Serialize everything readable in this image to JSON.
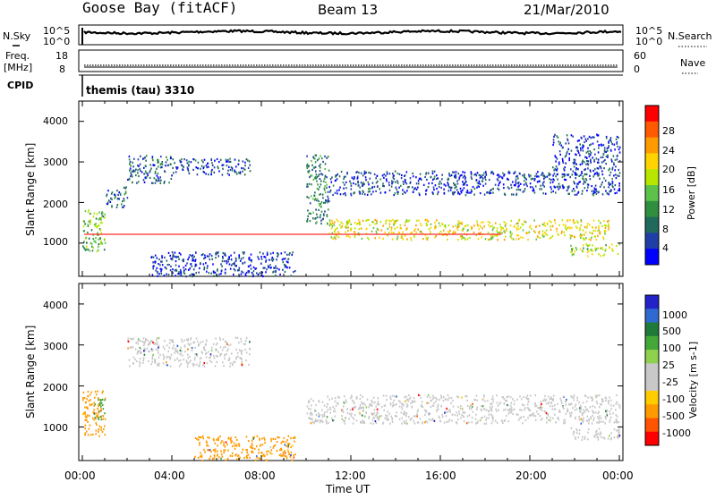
{
  "header": {
    "station": "Goose Bay (fitACF)",
    "beam": "Beam 13",
    "date": "21/Mar/2010"
  },
  "panels": {
    "nsky": {
      "left_label": "N.Sky",
      "left_ticks": [
        "10^5",
        "10^0"
      ],
      "right_label": "N.Search",
      "right_ticks": [
        "10^5",
        "10^0"
      ]
    },
    "freq": {
      "left_label_1": "Freq.",
      "left_label_2": "[MHz]",
      "left_ticks": [
        "18",
        "8"
      ],
      "right_label": "Nave",
      "right_ticks": [
        "60",
        "0"
      ]
    },
    "cpid": {
      "label": "CPID",
      "text": "themis (tau) 3310"
    }
  },
  "power_colorbar": {
    "label": "Power [dB]",
    "ticks": [
      "28",
      "24",
      "20",
      "16",
      "12",
      "8",
      "4"
    ],
    "colors": [
      "#ff0000",
      "#ff5a00",
      "#ff9a00",
      "#ffd400",
      "#b8e600",
      "#5cc24a",
      "#2f8f3f",
      "#1f6a5a",
      "#1f3fa6",
      "#0000ff"
    ]
  },
  "velocity_colorbar": {
    "label": "Velocity [m s-1]",
    "ticks": [
      "1000",
      "500",
      "100",
      "25",
      "-25",
      "-100",
      "-500",
      "-1000"
    ],
    "colors": [
      "#2222c8",
      "#2f6ad0",
      "#1f7a3a",
      "#44a838",
      "#8ed14f",
      "#c8c8c8",
      "#c8c8c8",
      "#ffcc00",
      "#ff9a00",
      "#ff5500",
      "#ff0000"
    ]
  },
  "axes": {
    "ylabel": "Slant Range [km]",
    "yticks": [
      "4000",
      "3000",
      "2000",
      "1000"
    ],
    "xlabel": "Time UT",
    "xticks": [
      "00:00",
      "04:00",
      "08:00",
      "12:00",
      "16:00",
      "20:00",
      "00:00"
    ]
  },
  "chart_data": {
    "type": "heatmap",
    "title": "Goose Bay (fitACF) Beam 13 21/Mar/2010",
    "xlabel": "Time UT",
    "ylabel": "Slant Range [km]",
    "xlim": [
      0,
      24
    ],
    "ylim": [
      180,
      4500
    ],
    "scatter_regions_power": [
      {
        "t_start": 0.0,
        "t_end": 1.0,
        "r_min": 800,
        "r_max": 1900,
        "power_db": 14
      },
      {
        "t_start": 1.0,
        "t_end": 2.0,
        "r_min": 1900,
        "r_max": 2400,
        "power_db": 8
      },
      {
        "t_start": 2.0,
        "t_end": 4.0,
        "r_min": 2500,
        "r_max": 3200,
        "power_db": 8
      },
      {
        "t_start": 4.0,
        "t_end": 7.5,
        "r_min": 2700,
        "r_max": 3100,
        "power_db": 6
      },
      {
        "t_start": 3.0,
        "t_end": 9.5,
        "r_min": 200,
        "r_max": 800,
        "power_db": 5
      },
      {
        "t_start": 10.0,
        "t_end": 11.0,
        "r_min": 1500,
        "r_max": 3200,
        "power_db": 10
      },
      {
        "t_start": 11.0,
        "t_end": 23.5,
        "r_min": 1100,
        "r_max": 1600,
        "power_db": 20
      },
      {
        "t_start": 11.0,
        "t_end": 21.0,
        "r_min": 2200,
        "r_max": 2800,
        "power_db": 6
      },
      {
        "t_start": 21.0,
        "t_end": 24.0,
        "r_min": 2200,
        "r_max": 3700,
        "power_db": 6
      },
      {
        "t_start": 21.8,
        "t_end": 24.0,
        "r_min": 700,
        "r_max": 1000,
        "power_db": 18
      }
    ],
    "scatter_regions_velocity": [
      {
        "t_start": 0.0,
        "t_end": 1.0,
        "r_min": 800,
        "r_max": 1900,
        "velocity": -100
      },
      {
        "t_start": 0.5,
        "t_end": 1.0,
        "r_min": 1200,
        "r_max": 1700,
        "velocity": 100
      },
      {
        "t_start": 2.0,
        "t_end": 7.5,
        "r_min": 2500,
        "r_max": 3200,
        "velocity": 0
      },
      {
        "t_start": 5.0,
        "t_end": 9.5,
        "r_min": 200,
        "r_max": 800,
        "velocity": -100
      },
      {
        "t_start": 10.0,
        "t_end": 24.0,
        "r_min": 1100,
        "r_max": 1800,
        "velocity": 0
      },
      {
        "t_start": 21.8,
        "t_end": 24.0,
        "r_min": 700,
        "r_max": 1000,
        "velocity": 0
      }
    ]
  }
}
